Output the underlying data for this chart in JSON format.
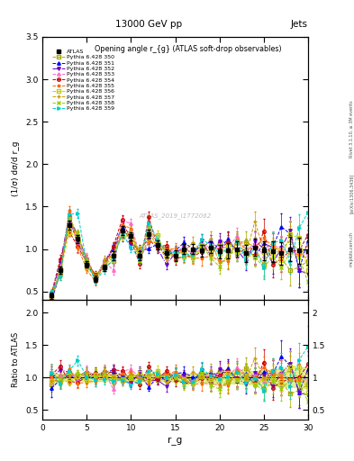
{
  "title_top": "13000 GeV pp",
  "title_right": "Jets",
  "plot_title": "Opening angle r_{g} (ATLAS soft-drop observables)",
  "xlabel": "r_g",
  "ylabel_main": "(1/σ) dσ/d r_g",
  "ylabel_ratio": "Ratio to ATLAS",
  "watermark": "ATLAS_2019_I1772062",
  "rivet_label": "Rivet 3.1.10, ≥ 3M events",
  "arxiv_label": "[arXiv:1306.3436]",
  "mcplots_label": "mcplots.cern.ch",
  "xlim": [
    0,
    30
  ],
  "ylim_main": [
    0.4,
    3.5
  ],
  "ylim_ratio": [
    0.35,
    2.2
  ],
  "x_ticks": [
    0,
    5,
    10,
    15,
    20,
    25,
    30
  ],
  "series": [
    {
      "label": "ATLAS",
      "color": "#000000",
      "marker": "s",
      "filled": true,
      "linestyle": "none"
    },
    {
      "label": "Pythia 6.428 350",
      "color": "#aaaa00",
      "marker": "s",
      "filled": false,
      "linestyle": "--"
    },
    {
      "label": "Pythia 6.428 351",
      "color": "#0000ff",
      "marker": "^",
      "filled": true,
      "linestyle": "--"
    },
    {
      "label": "Pythia 6.428 352",
      "color": "#6600cc",
      "marker": "v",
      "filled": true,
      "linestyle": "-."
    },
    {
      "label": "Pythia 6.428 353",
      "color": "#ff66cc",
      "marker": "^",
      "filled": false,
      "linestyle": "--"
    },
    {
      "label": "Pythia 6.428 354",
      "color": "#cc0000",
      "marker": "o",
      "filled": false,
      "linestyle": "--"
    },
    {
      "label": "Pythia 6.428 355",
      "color": "#ff6600",
      "marker": "*",
      "filled": true,
      "linestyle": "--"
    },
    {
      "label": "Pythia 6.428 356",
      "color": "#cccc00",
      "marker": "s",
      "filled": false,
      "linestyle": "--"
    },
    {
      "label": "Pythia 6.428 357",
      "color": "#cc9900",
      "marker": "+",
      "filled": true,
      "linestyle": "--"
    },
    {
      "label": "Pythia 6.428 358",
      "color": "#99cc00",
      "marker": "x",
      "filled": true,
      "linestyle": "--"
    },
    {
      "label": "Pythia 6.428 359",
      "color": "#00cccc",
      "marker": ">",
      "filled": true,
      "linestyle": "--"
    }
  ],
  "atlas_y": [
    0.45,
    0.75,
    1.28,
    1.12,
    0.82,
    0.65,
    0.78,
    0.92,
    1.22,
    1.15,
    0.92,
    1.18,
    1.05,
    0.95,
    0.92,
    1.0,
    1.0,
    0.98,
    1.02,
    0.97,
    0.98,
    1.0,
    0.95,
    1.02,
    0.98,
    0.97,
    0.95,
    1.0,
    0.98,
    0.97
  ],
  "atlas_yerr": [
    0.04,
    0.04,
    0.05,
    0.05,
    0.04,
    0.04,
    0.04,
    0.05,
    0.05,
    0.05,
    0.05,
    0.05,
    0.05,
    0.05,
    0.06,
    0.06,
    0.06,
    0.07,
    0.07,
    0.08,
    0.09,
    0.09,
    0.1,
    0.1,
    0.11,
    0.12,
    0.13,
    0.14,
    0.15,
    0.16
  ]
}
